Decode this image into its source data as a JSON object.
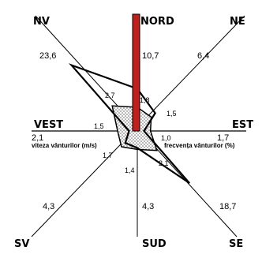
{
  "chart_data": {
    "type": "radar",
    "directions": [
      "NORD",
      "NE",
      "EST",
      "SE",
      "SUD",
      "SV",
      "VEST",
      "NV"
    ],
    "series": [
      {
        "name": "frecvența vânturilor (%)",
        "values": [
          10.7,
          6.4,
          1.7,
          18.7,
          4.3,
          4.3,
          2.1,
          23.6
        ]
      },
      {
        "name": "viteza vânturilor (m/s)",
        "values": [
          1.8,
          1.5,
          1.0,
          2.1,
          1.4,
          1.7,
          1.5,
          2.7
        ]
      }
    ],
    "frequency_labels": {
      "NORD": "10,7",
      "NE": "6,4",
      "EST": "1,7",
      "SE": "18,7",
      "SUD": "4,3",
      "SV": "4,3",
      "VEST": "2,1",
      "NV": "23,6"
    },
    "speed_labels": {
      "NORD": "1,8",
      "NE": "1,5",
      "EST": "1,0",
      "SE": "2,1",
      "SUD": "1,4",
      "SV": "1,7",
      "VEST": "1,5",
      "NV": "2,7"
    },
    "axis_labels": {
      "speed": "viteza vânturilor (m/s)",
      "frequency": "frecvența vânturilor (%)"
    },
    "frequency_max": 30,
    "speed_max": 9,
    "colors": {
      "north_bar": "#c0201b",
      "lines": "#000000",
      "speed_fill": "#d9d9d9"
    }
  }
}
